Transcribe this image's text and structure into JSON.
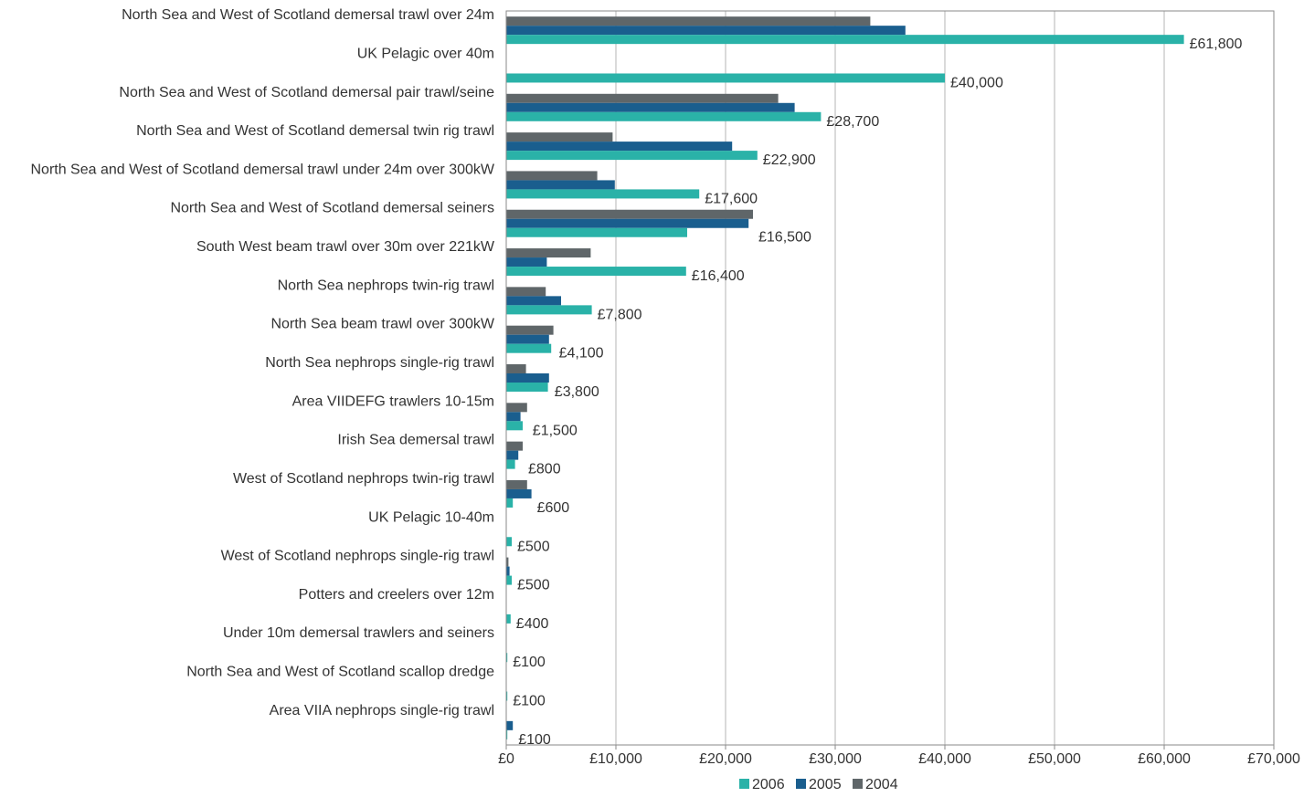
{
  "chart_data": {
    "type": "bar",
    "orientation": "horizontal",
    "categories": [
      "North Sea and West of Scotland demersal trawl over 24m",
      "UK Pelagic over 40m",
      "North Sea and West of Scotland demersal pair trawl/seine",
      "North Sea and West of Scotland demersal twin rig trawl",
      "North Sea and West of Scotland demersal trawl under 24m over 300kW",
      "North Sea and West of Scotland demersal seiners",
      "South West beam trawl over 30m over 221kW",
      "North Sea nephrops twin-rig trawl",
      "North Sea beam trawl over 300kW",
      "North Sea nephrops single-rig trawl",
      "Area VIIDEFG trawlers 10-15m",
      "Irish Sea demersal trawl",
      "West of Scotland nephrops twin-rig trawl",
      "UK Pelagic 10-40m",
      "West of Scotland nephrops single-rig trawl",
      "Potters and creelers over 12m",
      "Under 10m demersal trawlers and seiners",
      "North Sea and West of Scotland scallop dredge",
      "Area VIIA nephrops single-rig trawl"
    ],
    "series": [
      {
        "name": "2004",
        "color": "#5f6669",
        "values": [
          33200,
          0,
          24800,
          9700,
          8300,
          22500,
          7700,
          3600,
          4300,
          1800,
          1900,
          1500,
          1900,
          0,
          200,
          0,
          0,
          0,
          0
        ]
      },
      {
        "name": "2005",
        "color": "#1a5e8e",
        "values": [
          36400,
          0,
          26300,
          20600,
          9900,
          22100,
          3700,
          5000,
          3900,
          3900,
          1300,
          1100,
          2300,
          0,
          300,
          0,
          0,
          0,
          600
        ]
      },
      {
        "name": "2006",
        "color": "#2ab2a8",
        "values": [
          61800,
          40000,
          28700,
          22900,
          17600,
          16500,
          16400,
          7800,
          4100,
          3800,
          1500,
          800,
          600,
          500,
          500,
          400,
          100,
          100,
          100
        ]
      }
    ],
    "data_labels": [
      "£61,800",
      "£40,000",
      "£28,700",
      "£22,900",
      "£17,600",
      "£16,500",
      "£16,400",
      "£7,800",
      "£4,100",
      "£3,800",
      "£1,500",
      "£800",
      "£600",
      "£500",
      "£500",
      "£400",
      "£100",
      "£100",
      "£100"
    ],
    "x_ticks": [
      "£0",
      "£10,000",
      "£20,000",
      "£30,000",
      "£40,000",
      "£50,000",
      "£60,000",
      "£70,000"
    ],
    "xlim": [
      0,
      70000
    ],
    "grid": "vertical",
    "legend_position": "bottom",
    "legend_order": [
      "2006",
      "2005",
      "2004"
    ],
    "title": "",
    "xlabel": "",
    "ylabel": ""
  }
}
